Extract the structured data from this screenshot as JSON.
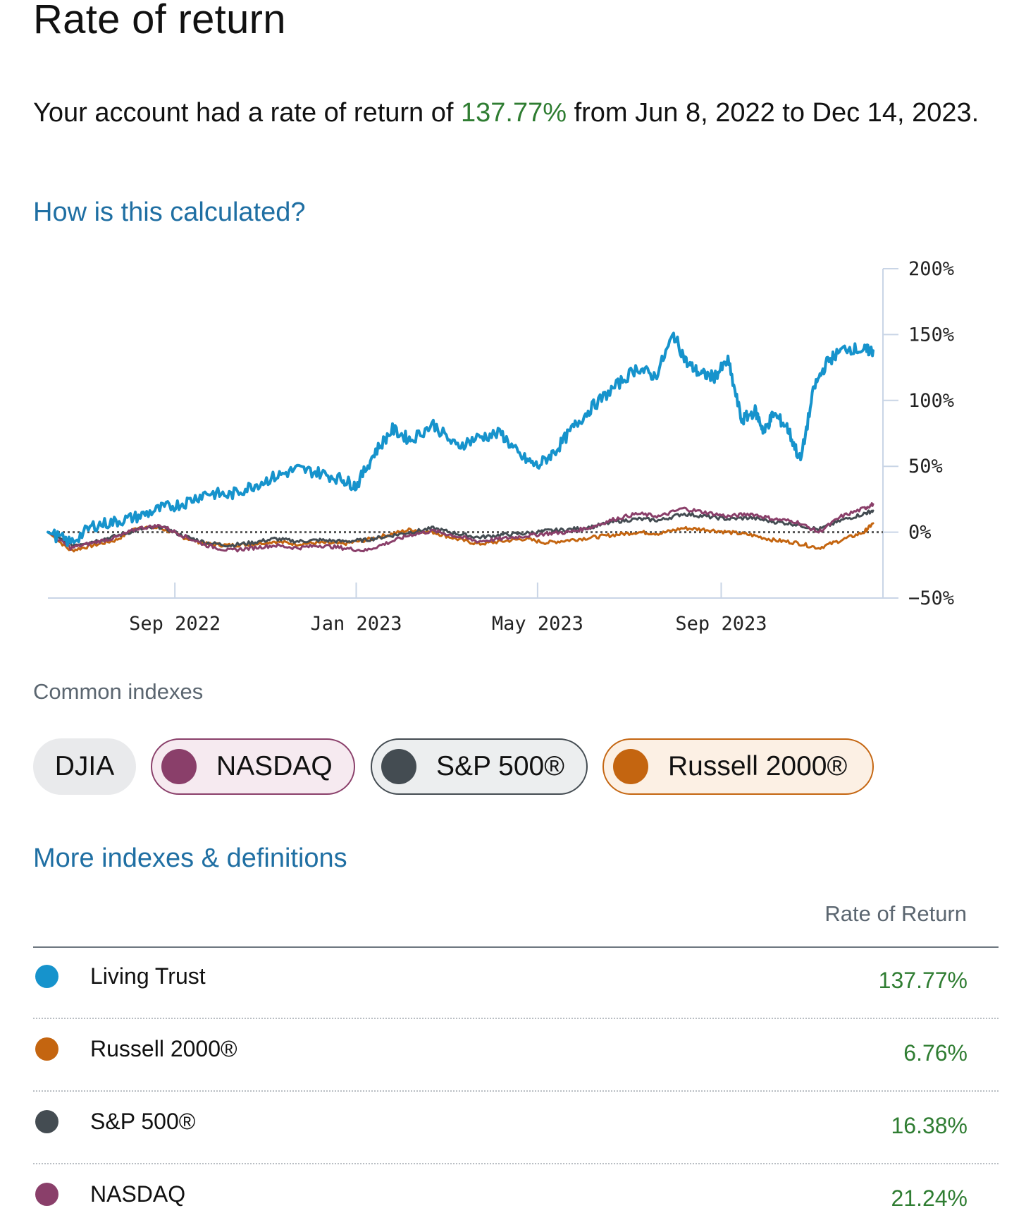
{
  "page": {
    "title": "Rate of return",
    "summary_prefix": "Your account had a rate of return of ",
    "summary_value": "137.77%",
    "summary_suffix": " from Jun 8, 2022 to Dec 14, 2023.",
    "how_link": "How is this calculated?",
    "common_indexes_label": "Common indexes",
    "more_link": "More indexes & definitions",
    "table_header": "Rate of Return"
  },
  "chips": [
    {
      "label": "DJIA",
      "selected": false
    },
    {
      "label": "NASDAQ",
      "selected": true,
      "color": "#8a3f6a"
    },
    {
      "label": "S&P 500®",
      "selected": true,
      "color": "#444c52"
    },
    {
      "label": "Russell 2000®",
      "selected": true,
      "color": "#c46510"
    }
  ],
  "table": [
    {
      "name": "Living Trust",
      "value": "137.77%",
      "color": "#1693cc"
    },
    {
      "name": "Russell 2000®",
      "value": "6.76%",
      "color": "#c46510"
    },
    {
      "name": "S&P 500®",
      "value": "16.38%",
      "color": "#444c52"
    },
    {
      "name": "NASDAQ",
      "value": "21.24%",
      "color": "#8a3f6a"
    }
  ],
  "chart_data": {
    "type": "line",
    "title": "",
    "xlabel": "",
    "ylabel": "",
    "ylim": [
      -50,
      200
    ],
    "yticks": [
      -50,
      0,
      50,
      100,
      150,
      200
    ],
    "ytick_labels": [
      "−50%",
      "0%",
      "50%",
      "100%",
      "150%",
      "200%"
    ],
    "xtick_labels": [
      "Sep 2022",
      "Jan 2023",
      "May 2023",
      "Sep 2023"
    ],
    "xtick_months": [
      2.8,
      6.8,
      10.8,
      14.85
    ],
    "x_range_months": [
      0,
      18.2
    ],
    "baseline": 0,
    "series": [
      {
        "name": "Living Trust",
        "color": "#1693cc",
        "x": [
          0,
          0.5,
          1,
          1.5,
          2,
          2.5,
          3,
          3.5,
          4,
          4.5,
          5,
          5.5,
          6,
          6.5,
          6.8,
          7.2,
          7.6,
          8,
          8.5,
          9,
          9.5,
          10,
          10.4,
          10.8,
          11.2,
          11.6,
          12,
          12.5,
          13,
          13.4,
          13.8,
          14.1,
          14.4,
          14.7,
          15,
          15.3,
          15.6,
          15.8,
          16,
          16.3,
          16.6,
          16.9,
          17.2,
          17.6,
          18,
          18.2
        ],
        "y": [
          0,
          -8,
          5,
          8,
          12,
          18,
          22,
          30,
          28,
          35,
          42,
          48,
          45,
          40,
          35,
          60,
          78,
          70,
          82,
          65,
          72,
          75,
          58,
          50,
          62,
          80,
          95,
          110,
          125,
          118,
          150,
          128,
          120,
          118,
          130,
          85,
          92,
          76,
          90,
          80,
          54,
          110,
          130,
          140,
          138,
          137.77
        ]
      },
      {
        "name": "NASDAQ",
        "color": "#8a3f6a",
        "x": [
          0,
          0.5,
          1,
          1.5,
          2,
          2.5,
          3,
          3.5,
          4,
          4.5,
          5,
          5.5,
          6,
          6.5,
          7,
          7.5,
          8,
          8.5,
          9,
          9.5,
          10,
          10.5,
          11,
          11.5,
          12,
          12.5,
          13,
          13.5,
          14,
          14.5,
          15,
          15.5,
          16,
          16.5,
          17,
          17.5,
          18,
          18.2
        ],
        "y": [
          0,
          -12,
          -8,
          -4,
          3,
          5,
          -3,
          -10,
          -14,
          -12,
          -10,
          -12,
          -10,
          -12,
          -14,
          -8,
          -2,
          1,
          -3,
          -7,
          -5,
          -3,
          -1,
          0,
          4,
          10,
          14,
          12,
          18,
          15,
          12,
          14,
          10,
          8,
          0,
          12,
          18,
          21.24
        ]
      },
      {
        "name": "S&P 500®",
        "color": "#444c52",
        "x": [
          0,
          0.5,
          1,
          1.5,
          2,
          2.5,
          3,
          3.5,
          4,
          4.5,
          5,
          5.5,
          6,
          6.5,
          7,
          7.5,
          8,
          8.5,
          9,
          9.5,
          10,
          10.5,
          11,
          11.5,
          12,
          12.5,
          13,
          13.5,
          14,
          14.5,
          15,
          15.5,
          16,
          16.5,
          17,
          17.5,
          18,
          18.2
        ],
        "y": [
          0,
          -10,
          -7,
          -3,
          2,
          4,
          -3,
          -8,
          -10,
          -8,
          -5,
          -7,
          -6,
          -7,
          -6,
          -3,
          0,
          3,
          -1,
          -4,
          -2,
          -1,
          1,
          2,
          4,
          8,
          10,
          9,
          14,
          12,
          10,
          11,
          8,
          6,
          2,
          9,
          14,
          16.38
        ]
      },
      {
        "name": "Russell 2000®",
        "color": "#c46510",
        "x": [
          0,
          0.5,
          1,
          1.5,
          2,
          2.5,
          3,
          3.5,
          4,
          4.5,
          5,
          5.5,
          6,
          6.5,
          7,
          7.5,
          8,
          8.5,
          9,
          9.5,
          10,
          10.5,
          11,
          11.5,
          12,
          12.5,
          13,
          13.5,
          14,
          14.5,
          15,
          15.5,
          16,
          16.5,
          17,
          17.5,
          18,
          18.2
        ],
        "y": [
          0,
          -14,
          -10,
          -6,
          4,
          3,
          -4,
          -9,
          -10,
          -9,
          -7,
          -9,
          -8,
          -9,
          -6,
          -2,
          2,
          0,
          -5,
          -9,
          -7,
          -5,
          -8,
          -6,
          -4,
          -2,
          0,
          -1,
          3,
          2,
          0,
          -2,
          -6,
          -8,
          -12,
          -6,
          0,
          6.76
        ]
      }
    ]
  }
}
